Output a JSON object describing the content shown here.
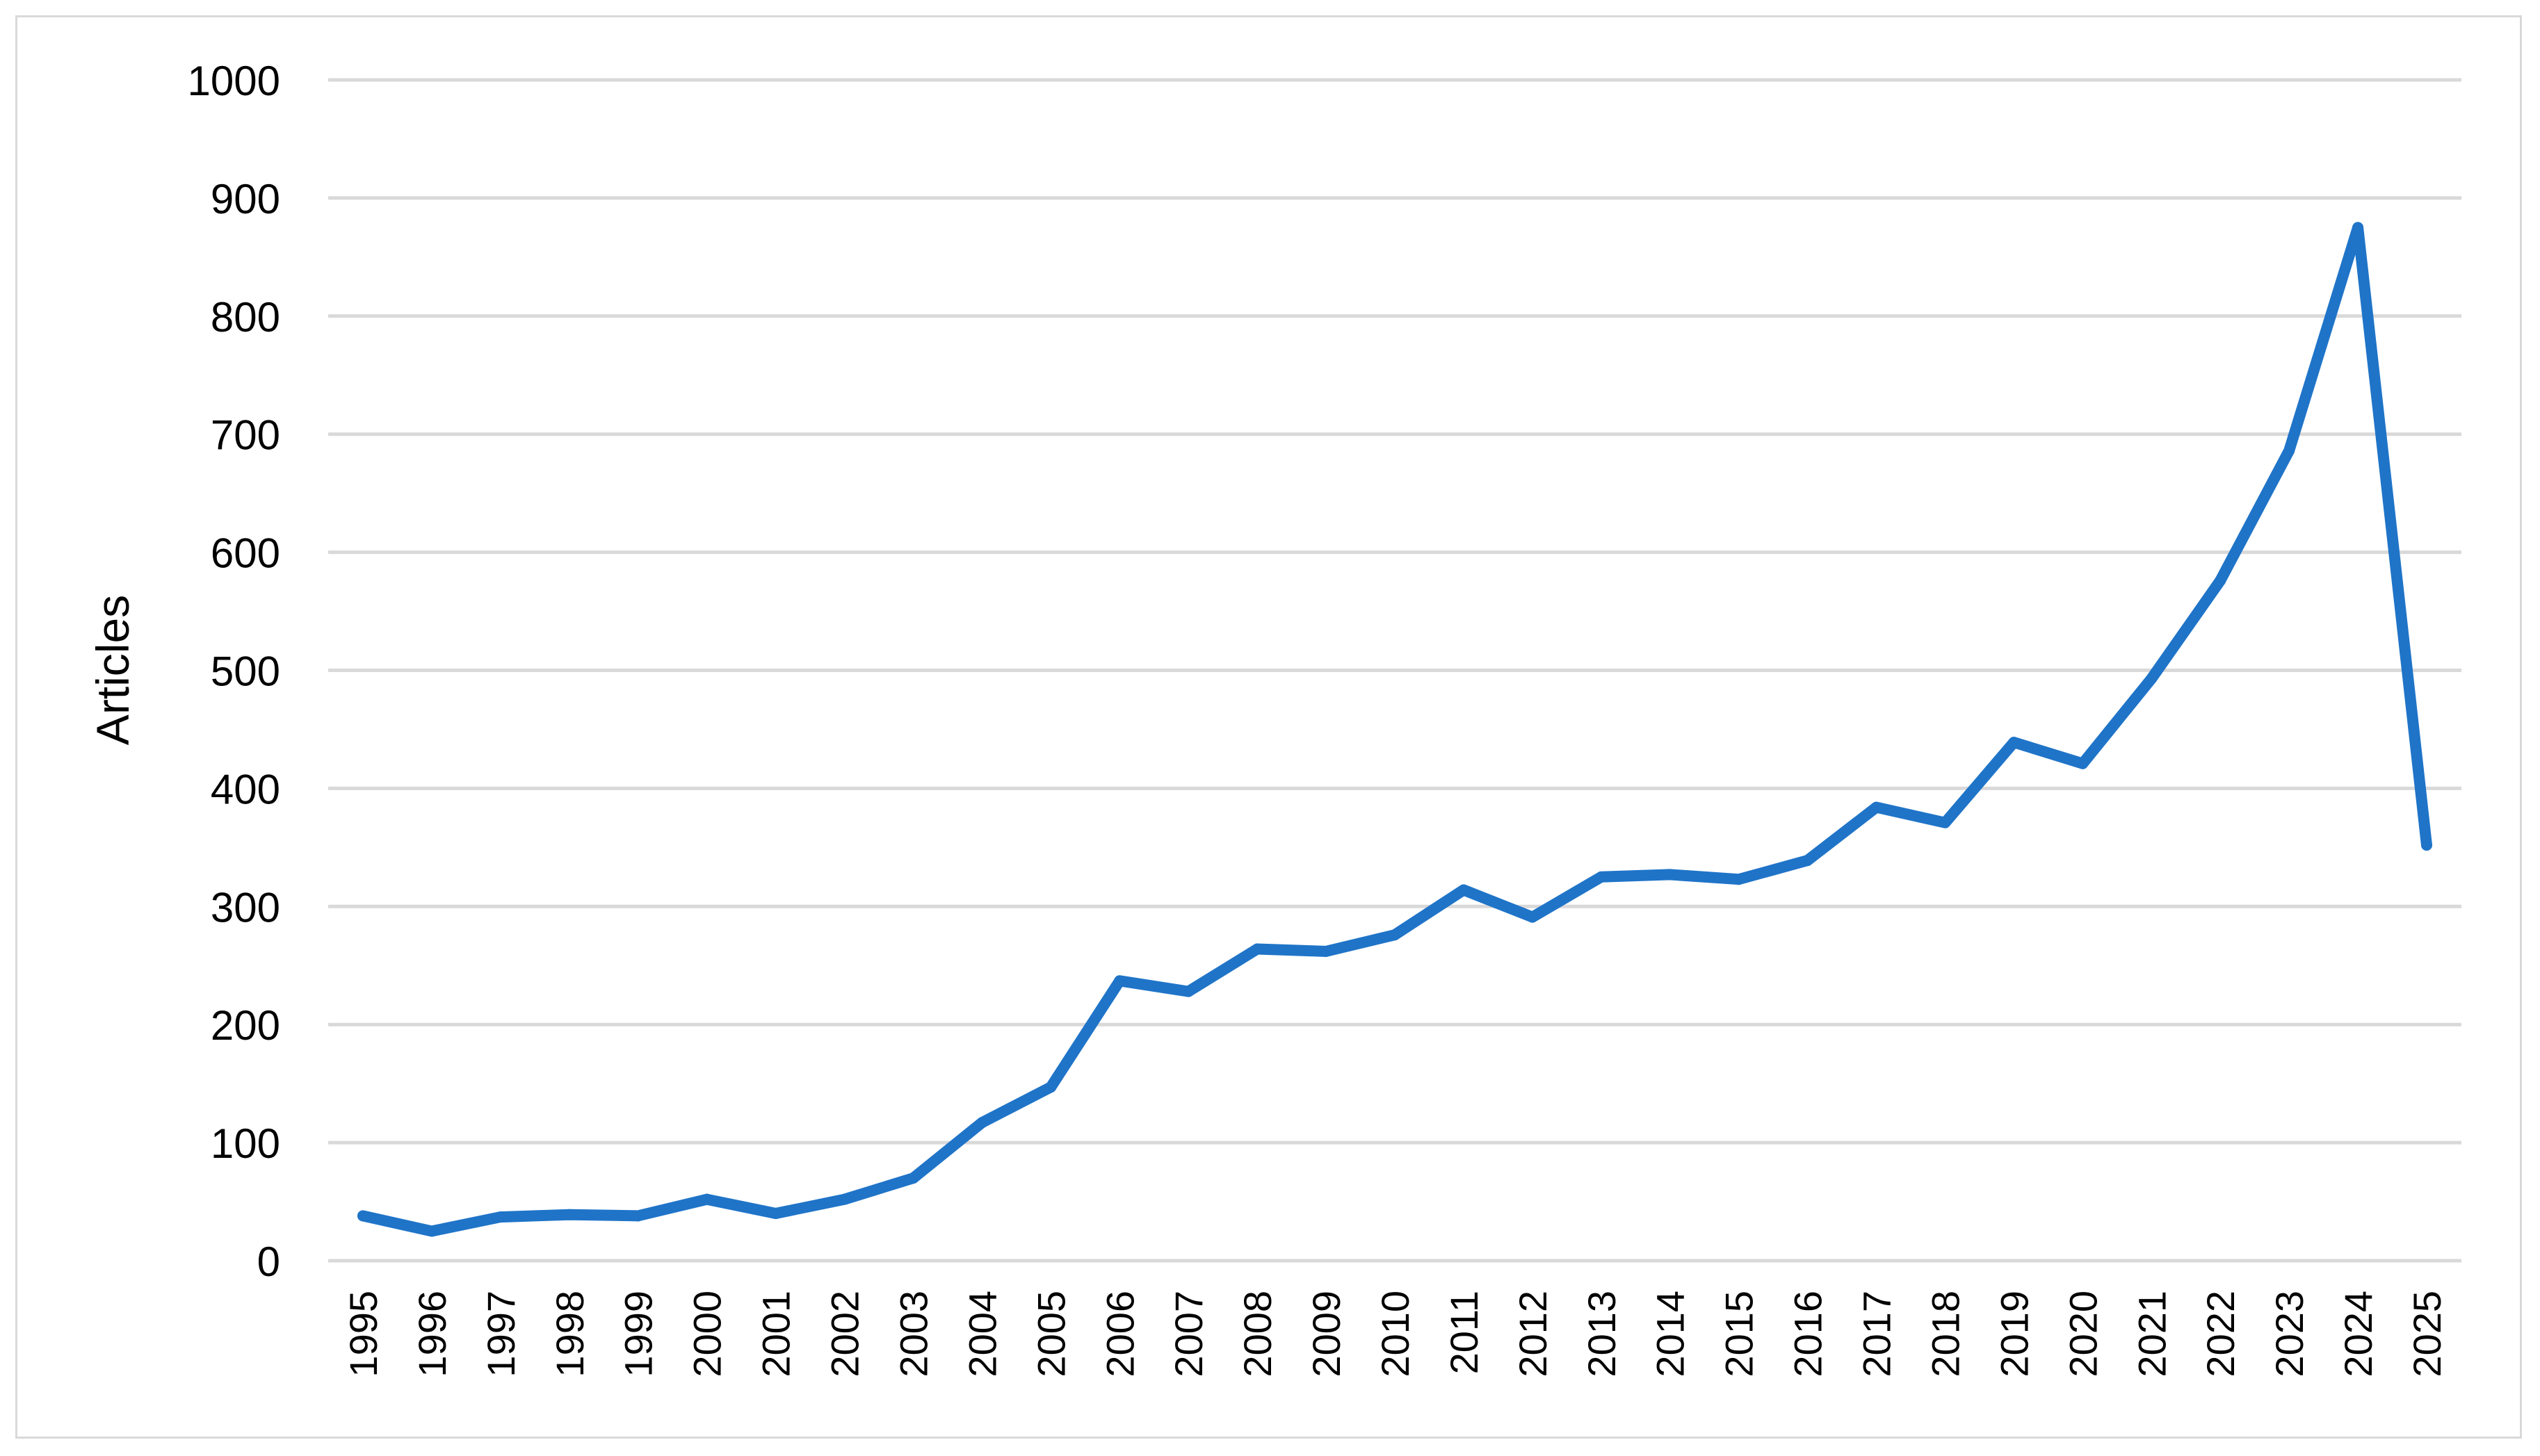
{
  "chart_data": {
    "type": "line",
    "title": "",
    "xlabel": "",
    "ylabel": "Articles",
    "x": [
      "1995",
      "1996",
      "1997",
      "1998",
      "1999",
      "2000",
      "2001",
      "2002",
      "2003",
      "2004",
      "2005",
      "2006",
      "2007",
      "2008",
      "2009",
      "2010",
      "2011",
      "2012",
      "2013",
      "2014",
      "2015",
      "2016",
      "2017",
      "2018",
      "2019",
      "2020",
      "2021",
      "2022",
      "2023",
      "2024",
      "2025"
    ],
    "series": [
      {
        "values": [
          38,
          25,
          37,
          39,
          38,
          52,
          40,
          52,
          70,
          117,
          147,
          237,
          228,
          264,
          262,
          276,
          314,
          291,
          325,
          327,
          323,
          339,
          384,
          371,
          439,
          421,
          493,
          576,
          686,
          875,
          352
        ],
        "color": "#1f74c8"
      }
    ],
    "ylim": [
      0,
      1000
    ],
    "yticks": [
      "0",
      "100",
      "200",
      "300",
      "400",
      "500",
      "600",
      "700",
      "800",
      "900",
      "1000"
    ],
    "grid": "horizontal",
    "gridline_color": "#d9d9d9",
    "legend": "none"
  }
}
